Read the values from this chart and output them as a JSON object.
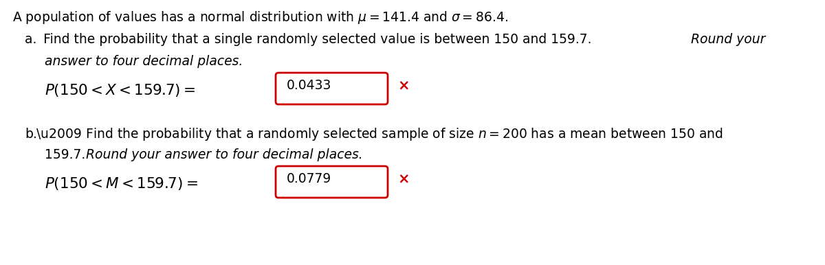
{
  "bg_color": "#ffffff",
  "text_color": "#000000",
  "box_color": "#cc0000",
  "font_size_main": 13.5,
  "font_size_math": 15.5,
  "font_size_answer": 13.5,
  "title": "A population of values has a normal distribution with $\\mu = 141.4$ and $\\sigma = 86.4$.",
  "part_a_line1_normal": "a. Find the probability that a single randomly selected value is between 150 and 159.7. ",
  "part_a_line1_italic": "Round your",
  "part_a_line2_italic": "    answer to four decimal places.",
  "part_a_math": "$P(150 < X < 159.7) =$",
  "part_a_answer": "0.0433",
  "part_b_line1": "b. Find the probability that a randomly selected sample of size $n = 200$ has a mean between 150 and",
  "part_b_line2_normal": "    159.7. ",
  "part_b_line2_italic": "Round your answer to four decimal places.",
  "part_b_math": "$P(150 < M < 159.7) =$",
  "part_b_answer": "0.0779"
}
